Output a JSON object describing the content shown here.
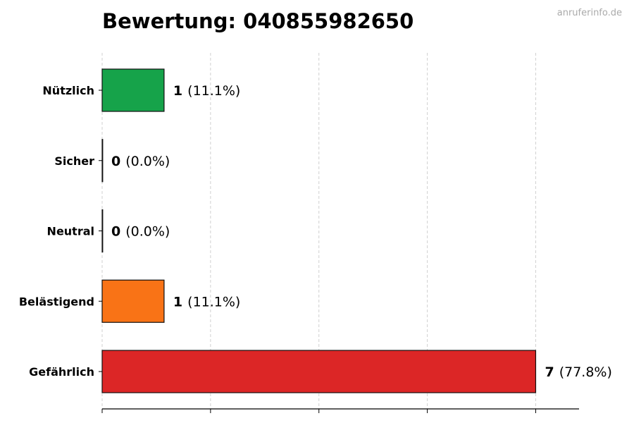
{
  "chart_data": {
    "type": "bar",
    "orientation": "horizontal",
    "title": "Bewertung: 040855982650",
    "watermark": "anruferinfo.de",
    "categories": [
      "Nützlich",
      "Sicher",
      "Neutral",
      "Belästigend",
      "Gefährlich"
    ],
    "values": [
      1,
      0,
      0,
      1,
      7
    ],
    "percent_labels": [
      "(11.1%)",
      "(0.0%)",
      "(0.0%)",
      "(11.1%)",
      "(77.8%)"
    ],
    "colors": [
      "#16a34a",
      "#2563eb",
      "#9ca3af",
      "#f97316",
      "#dc2626"
    ],
    "xlim": [
      0,
      7.7
    ],
    "xticks": [
      0,
      1.75,
      3.5,
      5.25,
      7
    ],
    "xtick_labels_shown": false,
    "grid": "vertical dashed",
    "xlabel": "",
    "ylabel": ""
  }
}
